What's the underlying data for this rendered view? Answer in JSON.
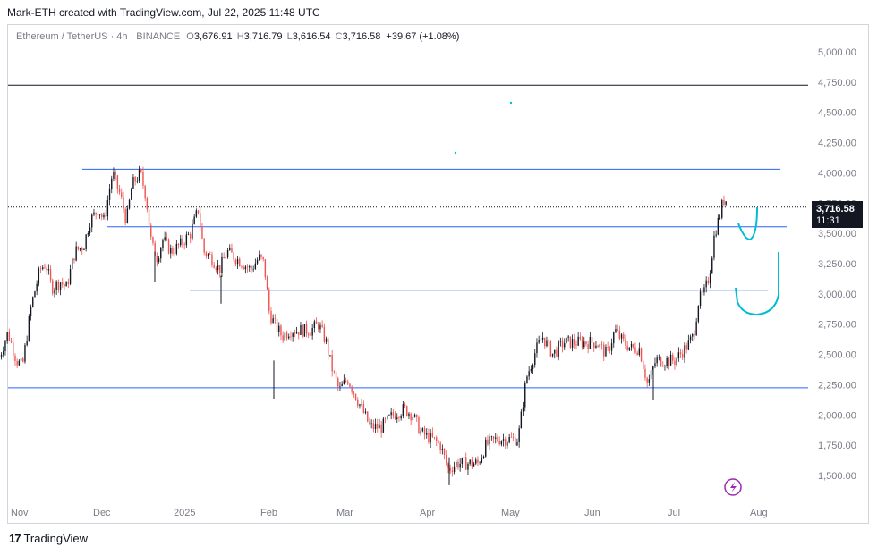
{
  "header": {
    "attribution": "Mark-ETH created with TradingView.com, Jul 22, 2025 11:48 UTC"
  },
  "legend": {
    "symbol": "Ethereum / TetherUS · 4h · BINANCE",
    "open_label": "O",
    "open": "3,676.91",
    "high_label": "H",
    "high": "3,716.79",
    "low_label": "L",
    "low": "3,616.54",
    "close_label": "C",
    "close": "3,716.58",
    "change": "+39.67 (+1.08%)"
  },
  "price_tag": {
    "price": "3,716.58",
    "countdown": "11:31"
  },
  "footer": {
    "logo": "17",
    "brand": "TradingView"
  },
  "colors": {
    "up": "#26a69a",
    "down": "#ef5350",
    "candle": "#131722",
    "level_line": "#2962ff",
    "resistance": "#131722",
    "tag_bg": "#131722",
    "drawing": "#00bcd4",
    "flash_icon": "#9c27b0"
  },
  "chart_data": {
    "type": "candlestick",
    "title": "Ethereum / TetherUS · 4h · BINANCE",
    "x_ticks": [
      "Nov",
      "Dec",
      "2025",
      "Feb",
      "Mar",
      "Apr",
      "May",
      "Jun",
      "Jul",
      "Aug"
    ],
    "y_ticks": [
      "5,000.00",
      "4,750.00",
      "4,500.00",
      "4,250.00",
      "4,000.00",
      "3,750.00",
      "3,500.00",
      "3,250.00",
      "3,000.00",
      "2,750.00",
      "2,500.00",
      "2,250.00",
      "2,000.00",
      "1,750.00",
      "1,500.00"
    ],
    "ylim": [
      1400,
      5100
    ],
    "horizontal_levels": [
      {
        "price": 4725,
        "color": "#131722",
        "style": "solid",
        "extent": "full"
      },
      {
        "price": 4030,
        "color": "#2962ff",
        "style": "solid",
        "extent": "Nov-Aug"
      },
      {
        "price": 3555,
        "color": "#2962ff",
        "style": "solid",
        "extent": "Nov-Aug"
      },
      {
        "price": 3030,
        "color": "#2962ff",
        "style": "solid",
        "extent": "Jan-Jul"
      },
      {
        "price": 2225,
        "color": "#2962ff",
        "style": "solid",
        "extent": "full"
      },
      {
        "price": 3716.58,
        "color": "#131722",
        "style": "dotted",
        "extent": "full"
      }
    ],
    "price_path": [
      [
        "Oct 28",
        2480
      ],
      [
        "Oct 31",
        2680
      ],
      [
        "Nov 3",
        2450
      ],
      [
        "Nov 5",
        2400
      ],
      [
        "Nov 8",
        2900
      ],
      [
        "Nov 11",
        3200
      ],
      [
        "Nov 13",
        3250
      ],
      [
        "Nov 15",
        3050
      ],
      [
        "Nov 18",
        3100
      ],
      [
        "Nov 20",
        3050
      ],
      [
        "Nov 23",
        3350
      ],
      [
        "Nov 26",
        3400
      ],
      [
        "Nov 28",
        3600
      ],
      [
        "Dec 1",
        3700
      ],
      [
        "Dec 3",
        3600
      ],
      [
        "Dec 6",
        4000
      ],
      [
        "Dec 9",
        3800
      ],
      [
        "Dec 11",
        3600
      ],
      [
        "Dec 13",
        3900
      ],
      [
        "Dec 16",
        4000
      ],
      [
        "Dec 18",
        3800
      ],
      [
        "Dec 20",
        3400
      ],
      [
        "Dec 22",
        3300
      ],
      [
        "Dec 24",
        3450
      ],
      [
        "Dec 27",
        3350
      ],
      [
        "Dec 30",
        3400
      ],
      [
        "Jan 3",
        3500
      ],
      [
        "Jan 6",
        3700
      ],
      [
        "Jan 8",
        3350
      ],
      [
        "Jan 11",
        3300
      ],
      [
        "Jan 14",
        3200
      ],
      [
        "Jan 17",
        3350
      ],
      [
        "Jan 20",
        3300
      ],
      [
        "Jan 23",
        3250
      ],
      [
        "Jan 26",
        3200
      ],
      [
        "Jan 29",
        3300
      ],
      [
        "Jan 31",
        3250
      ],
      [
        "Feb 2",
        2850
      ],
      [
        "Feb 4",
        2750
      ],
      [
        "Feb 7",
        2650
      ],
      [
        "Feb 10",
        2700
      ],
      [
        "Feb 14",
        2700
      ],
      [
        "Feb 18",
        2700
      ],
      [
        "Feb 21",
        2750
      ],
      [
        "Feb 24",
        2600
      ],
      [
        "Feb 26",
        2400
      ],
      [
        "Mar 1",
        2200
      ],
      [
        "Mar 4",
        2300
      ],
      [
        "Mar 7",
        2150
      ],
      [
        "Mar 10",
        2000
      ],
      [
        "Mar 12",
        1900
      ],
      [
        "Mar 16",
        1900
      ],
      [
        "Mar 20",
        2000
      ],
      [
        "Mar 24",
        2050
      ],
      [
        "Mar 27",
        2000
      ],
      [
        "Mar 30",
        1850
      ],
      [
        "Apr 3",
        1800
      ],
      [
        "Apr 6",
        1750
      ],
      [
        "Apr 9",
        1550
      ],
      [
        "Apr 12",
        1600
      ],
      [
        "Apr 16",
        1600
      ],
      [
        "Apr 20",
        1600
      ],
      [
        "Apr 23",
        1750
      ],
      [
        "Apr 27",
        1800
      ],
      [
        "May 1",
        1800
      ],
      [
        "May 5",
        1800
      ],
      [
        "May 8",
        2300
      ],
      [
        "May 11",
        2500
      ],
      [
        "May 14",
        2650
      ],
      [
        "May 18",
        2500
      ],
      [
        "May 22",
        2600
      ],
      [
        "May 26",
        2600
      ],
      [
        "May 30",
        2600
      ],
      [
        "Jun 3",
        2600
      ],
      [
        "Jun 7",
        2500
      ],
      [
        "Jun 10",
        2700
      ],
      [
        "Jun 13",
        2600
      ],
      [
        "Jun 16",
        2550
      ],
      [
        "Jun 19",
        2550
      ],
      [
        "Jun 22",
        2250
      ],
      [
        "Jun 25",
        2450
      ],
      [
        "Jun 28",
        2450
      ],
      [
        "Jul 2",
        2450
      ],
      [
        "Jul 6",
        2550
      ],
      [
        "Jul 9",
        2650
      ],
      [
        "Jul 11",
        2950
      ],
      [
        "Jul 13",
        3000
      ],
      [
        "Jul 15",
        3150
      ],
      [
        "Jul 17",
        3500
      ],
      [
        "Jul 19",
        3650
      ],
      [
        "Jul 20",
        3750
      ],
      [
        "Jul 21",
        3800
      ],
      [
        "Jul 22",
        3716.58
      ]
    ]
  }
}
